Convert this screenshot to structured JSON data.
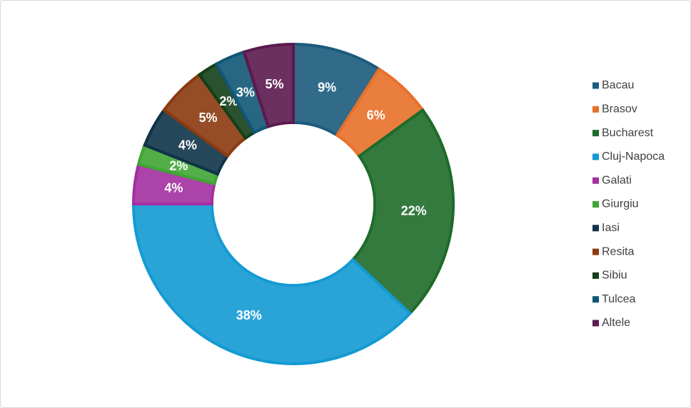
{
  "chart_data": {
    "type": "donut",
    "categories": [
      "Bacau",
      "Brasov",
      "Bucharest",
      "Cluj-Napoca",
      "Galati",
      "Giurgiu",
      "Iasi",
      "Resita",
      "Sibiu",
      "Tulcea",
      "Altele"
    ],
    "values": [
      9,
      6,
      22,
      38,
      4,
      2,
      4,
      5,
      2,
      3,
      5
    ],
    "value_labels": [
      "9%",
      "6%",
      "22%",
      "38%",
      "4%",
      "2%",
      "4%",
      "5%",
      "2%",
      "3%",
      "5%"
    ],
    "colors": [
      "#1b5b7c",
      "#e8702a",
      "#1e6b2a",
      "#139ad3",
      "#a32fa0",
      "#3fa535",
      "#0f3348",
      "#8b3a10",
      "#133f18",
      "#105677",
      "#5b1a4e"
    ],
    "legend": "right"
  }
}
